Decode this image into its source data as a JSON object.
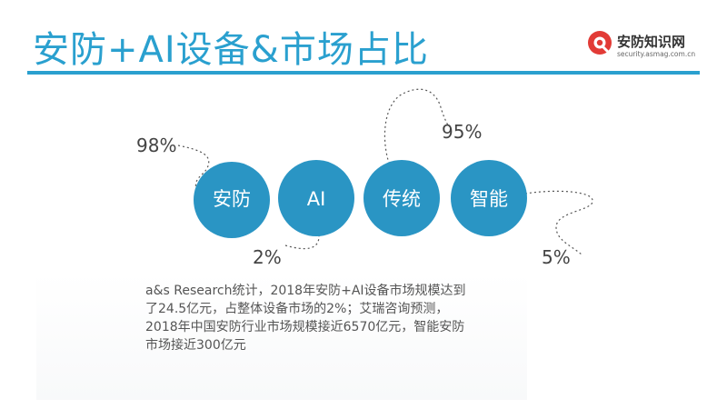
{
  "title": "安防+AI设备&市场占比",
  "logo": {
    "name": "安防知识网",
    "url": "security.asmag.com.cn"
  },
  "colors": {
    "accent": "#2aa0cf",
    "circle": "#2a95c4",
    "text": "#555555"
  },
  "circles": [
    {
      "label": "安防",
      "percent": "98%"
    },
    {
      "label": "AI",
      "percent": "2%"
    },
    {
      "label": "传统",
      "percent": "95%"
    },
    {
      "label": "智能",
      "percent": "5%"
    }
  ],
  "body": "a&s Research统计，2018年安防+AI设备市场规模达到了24.5亿元，占整体设备市场的2%；艾瑞咨询预测，2018年中国安防行业市场规模接近6570亿元，智能安防市场接近300亿元"
}
